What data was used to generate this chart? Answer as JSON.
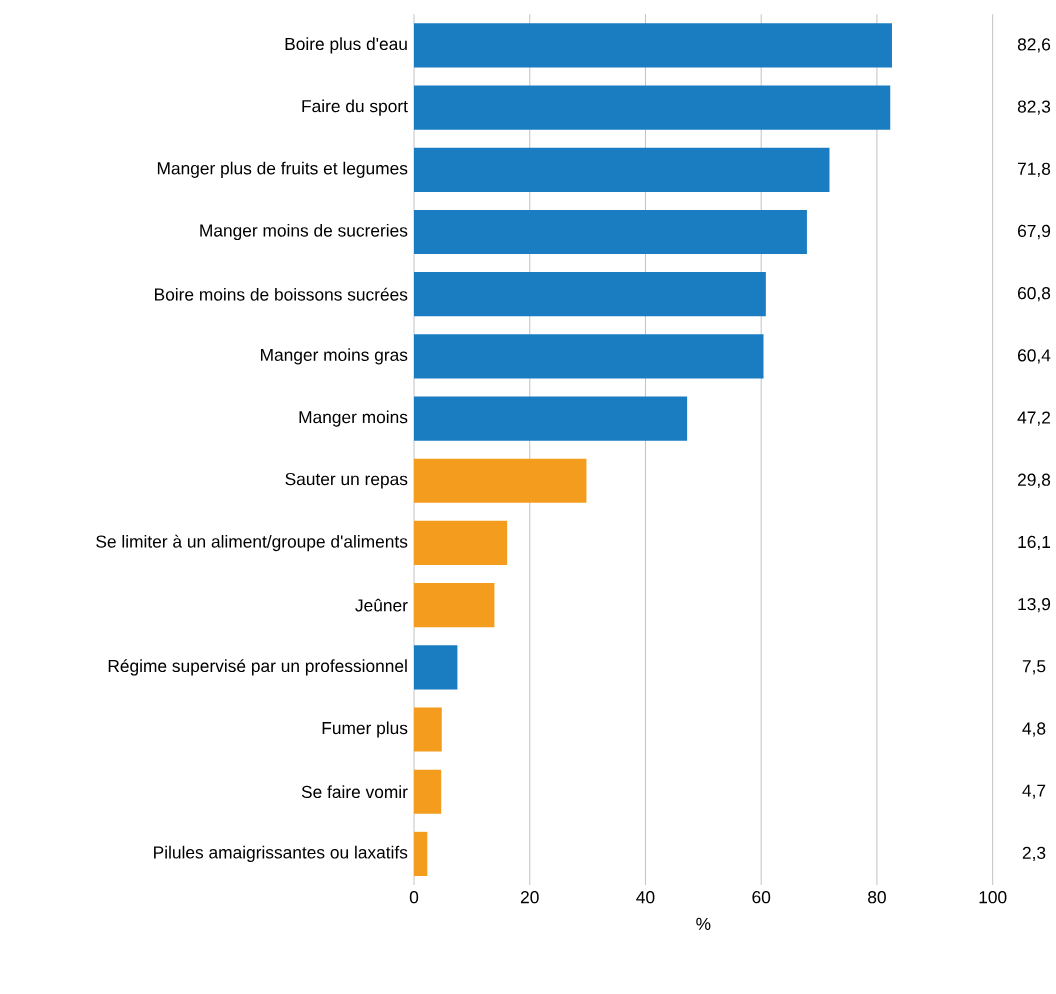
{
  "chart_data": {
    "type": "bar",
    "orientation": "horizontal",
    "xlabel": "%",
    "categories": [
      "Boire plus d'eau",
      "Faire du sport",
      "Manger plus de fruits et legumes",
      "Manger moins de sucreries",
      "Boire moins de boissons sucrées",
      "Manger moins gras",
      "Manger moins",
      "Sauter un repas",
      "Se limiter à un aliment/groupe d'aliments",
      "Jeûner",
      "Régime supervisé par un professionnel",
      "Fumer plus",
      "Se faire vomir",
      "Pilules amaigrissantes ou laxatifs"
    ],
    "values": [
      82.6,
      82.3,
      71.8,
      67.9,
      60.8,
      60.4,
      47.2,
      29.8,
      16.1,
      13.9,
      7.5,
      4.8,
      4.7,
      2.3
    ],
    "value_labels": [
      "82,6",
      "82,3",
      "71,8",
      "67,9",
      "60,8",
      "60,4",
      "47,2",
      "29,8",
      "16,1",
      "13,9",
      "7,5",
      "4,8",
      "4,7",
      "2,3"
    ],
    "colors": [
      "#1a7cc1",
      "#1a7cc1",
      "#1a7cc1",
      "#1a7cc1",
      "#1a7cc1",
      "#1a7cc1",
      "#1a7cc1",
      "#f39c1e",
      "#f39c1e",
      "#f39c1e",
      "#1a7cc1",
      "#f39c1e",
      "#f39c1e",
      "#f39c1e"
    ],
    "xlim": [
      0,
      100
    ],
    "xticks": [
      0,
      20,
      40,
      60,
      80,
      100
    ],
    "grid": "x"
  }
}
